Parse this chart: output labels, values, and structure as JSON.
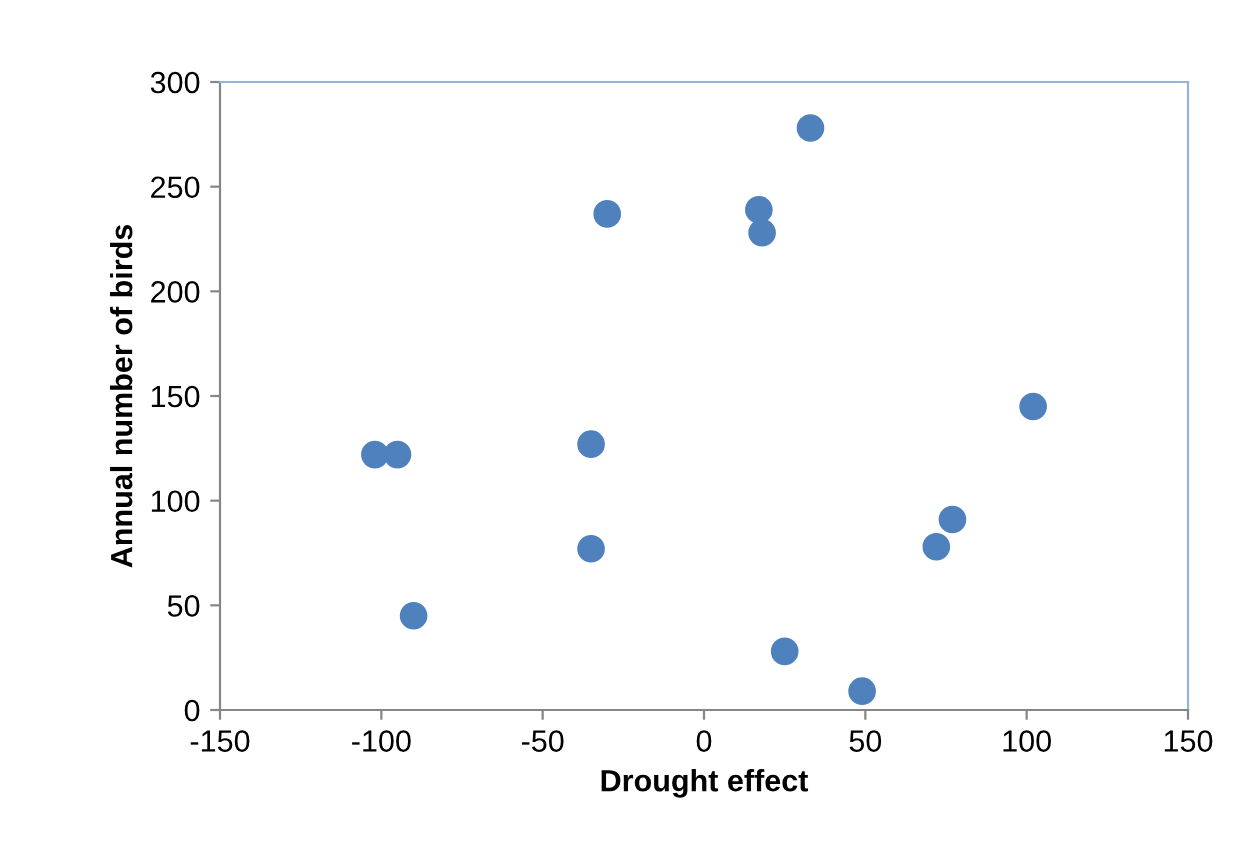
{
  "chart_data": {
    "type": "scatter",
    "xlabel": "Drought effect",
    "ylabel": "Annual number of birds",
    "x": [
      -102,
      -95,
      -90,
      -35,
      -35,
      -30,
      17,
      18,
      25,
      33,
      49,
      72,
      77,
      102
    ],
    "series": [
      {
        "color": "#4f81bd",
        "values": [
          122,
          122,
          45,
          127,
          77,
          237,
          239,
          228,
          28,
          278,
          9,
          78,
          91,
          145
        ]
      }
    ],
    "xlim": [
      -150,
      150
    ],
    "xticks": [
      -150,
      -100,
      -50,
      0,
      50,
      100,
      150
    ],
    "ylim": [
      0,
      300
    ],
    "yticks": [
      0,
      50,
      100,
      150,
      200,
      250,
      300
    ],
    "grid": false,
    "legend": false,
    "marker": "circle"
  }
}
